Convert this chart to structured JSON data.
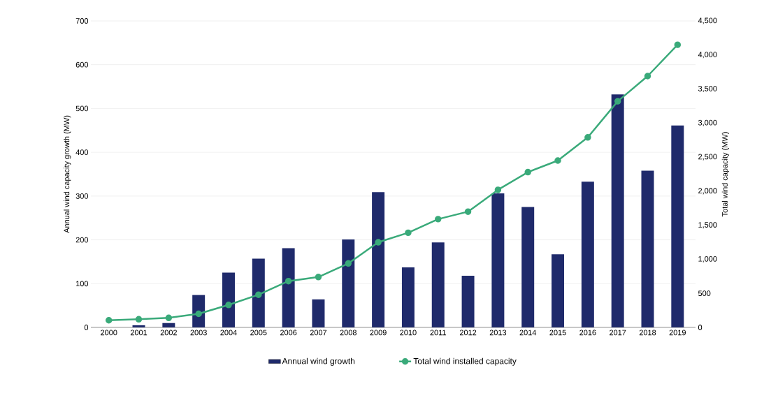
{
  "chart_data": {
    "type": "bar",
    "categories": [
      "2000",
      "2001",
      "2002",
      "2003",
      "2004",
      "2005",
      "2006",
      "2007",
      "2008",
      "2009",
      "2010",
      "2011",
      "2012",
      "2013",
      "2014",
      "2015",
      "2016",
      "2017",
      "2018",
      "2019"
    ],
    "series": [
      {
        "name": "Annual wind growth",
        "color": "#1f2a6b",
        "values": [
          0,
          5,
          10,
          74,
          125,
          157,
          181,
          64,
          201,
          309,
          137,
          194,
          118,
          306,
          275,
          167,
          333,
          532,
          358,
          461
        ]
      },
      {
        "name": "Total wind installed capacity",
        "color": "#3aaa7a",
        "type": "line",
        "axis": "y2",
        "values": [
          105,
          120,
          140,
          200,
          330,
          480,
          680,
          740,
          940,
          1250,
          1390,
          1590,
          1700,
          2020,
          2280,
          2450,
          2790,
          3320,
          3690,
          4150
        ]
      }
    ],
    "ylabel": "Annual wind capacity growth (MW)",
    "y2label": "Total wind capacity (MW)",
    "ylim": [
      0,
      700
    ],
    "yticks": [
      0,
      100,
      200,
      300,
      400,
      500,
      600,
      700
    ],
    "y2lim": [
      0,
      4500
    ],
    "y2ticks": [
      0,
      {
        "value": 500,
        "label": "500"
      },
      {
        "value": 1000,
        "label": "1,000"
      },
      {
        "value": 1500,
        "label": "1,500"
      },
      {
        "value": 2000,
        "label": "2,000"
      },
      {
        "value": 2500,
        "label": "2,500"
      },
      {
        "value": 3000,
        "label": "3,000"
      },
      {
        "value": 3500,
        "label": "3,500"
      },
      {
        "value": 4000,
        "label": "4,000"
      },
      {
        "value": 4500,
        "label": "4,500"
      }
    ],
    "grid": "y",
    "legend": "bottom",
    "marker": "circle",
    "line_style": "solid"
  }
}
